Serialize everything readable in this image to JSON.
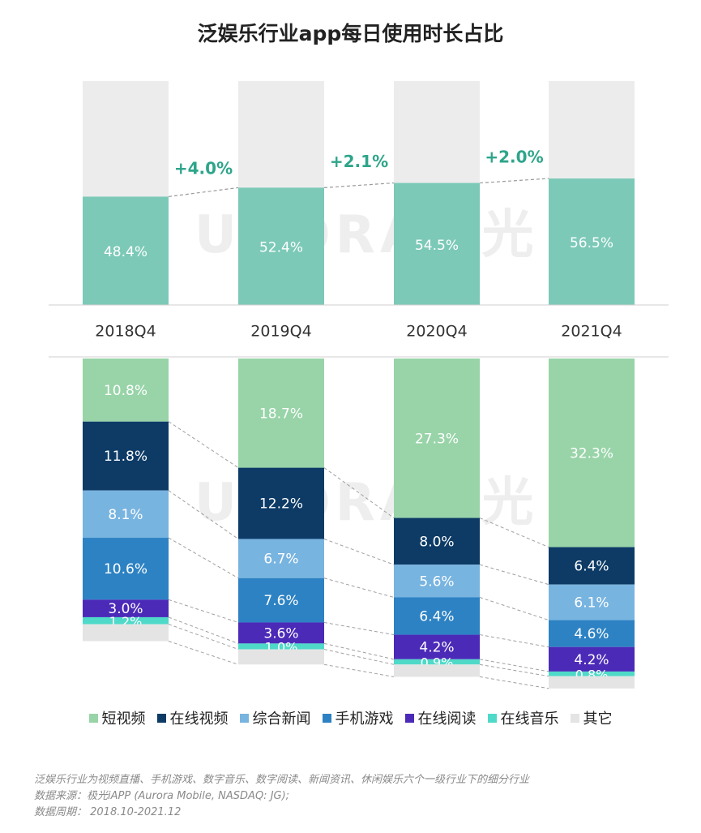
{
  "title": "泛娱乐行业app每日使用时长占比",
  "watermark": "URORA极光",
  "colors": {
    "top_bar": "#7cc9b8",
    "top_bg": "#ececec",
    "growth_text": "#2ea58a",
    "series": [
      "#98d4a8",
      "#0d3b66",
      "#78b4e0",
      "#2d82c3",
      "#4b2ab8",
      "#4fd9c8",
      "#e4e4e4"
    ]
  },
  "chart_data": [
    {
      "type": "bar",
      "title": "泛娱乐行业app每日使用时长占比",
      "categories": [
        "2018Q4",
        "2019Q4",
        "2020Q4",
        "2021Q4"
      ],
      "values": [
        48.4,
        52.4,
        54.5,
        56.5
      ],
      "value_labels": [
        "48.4%",
        "52.4%",
        "54.5%",
        "56.5%"
      ],
      "growth_labels": [
        "+4.0%",
        "+2.1%",
        "+2.0%"
      ],
      "ylim": [
        0,
        100
      ]
    },
    {
      "type": "bar",
      "stacked": true,
      "categories": [
        "2018Q4",
        "2019Q4",
        "2020Q4",
        "2021Q4"
      ],
      "series": [
        {
          "name": "短视频",
          "values": [
            10.8,
            18.7,
            27.3,
            32.3
          ],
          "labels": [
            "10.8%",
            "18.7%",
            "27.3%",
            "32.3%"
          ]
        },
        {
          "name": "在线视频",
          "values": [
            11.8,
            12.2,
            8.0,
            6.4
          ],
          "labels": [
            "11.8%",
            "12.2%",
            "8.0%",
            "6.4%"
          ]
        },
        {
          "name": "综合新闻",
          "values": [
            8.1,
            6.7,
            5.6,
            6.1
          ],
          "labels": [
            "8.1%",
            "6.7%",
            "5.6%",
            "6.1%"
          ]
        },
        {
          "name": "手机游戏",
          "values": [
            10.6,
            7.6,
            6.4,
            4.6
          ],
          "labels": [
            "10.6%",
            "7.6%",
            "6.4%",
            "4.6%"
          ]
        },
        {
          "name": "在线阅读",
          "values": [
            3.0,
            3.6,
            4.2,
            4.2
          ],
          "labels": [
            "3.0%",
            "3.6%",
            "4.2%",
            "4.2%"
          ]
        },
        {
          "name": "在线音乐",
          "values": [
            1.2,
            1.0,
            0.9,
            0.8
          ],
          "labels": [
            "1.2%",
            "1.0%",
            "0.9%",
            "0.8%"
          ]
        },
        {
          "name": "其它",
          "values": [
            2.9,
            2.6,
            2.1,
            2.1
          ],
          "labels": [
            "",
            "",
            "",
            ""
          ]
        }
      ]
    }
  ],
  "notes": [
    "泛娱乐行业为视频直播、手机游戏、数字音乐、数字阅读、新闻资讯、休闲娱乐六个一级行业下的细分行业",
    "数据来源：极光iAPP (Aurora Mobile, NASDAQ: JG);",
    "数据周期： 2018.10-2021.12"
  ]
}
